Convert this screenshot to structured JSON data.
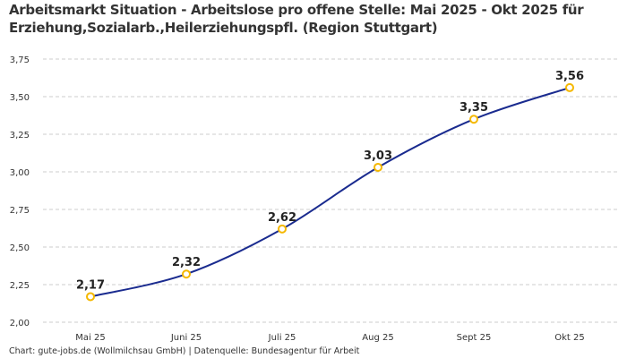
{
  "chart_data": {
    "type": "line",
    "title": "Arbeitsmarkt Situation - Arbeitslose pro offene Stelle: Mai 2025 - Okt 2025 für Erziehung,Sozialarb.,Heilerziehungspfl. (Region Stuttgart)",
    "categories": [
      "Mai 25",
      "Juni 25",
      "Juli 25",
      "Aug 25",
      "Sept 25",
      "Okt 25"
    ],
    "values": [
      2.17,
      2.32,
      2.62,
      3.03,
      3.35,
      3.56
    ],
    "data_labels": [
      "2,17",
      "2,32",
      "2,62",
      "3,03",
      "3,35",
      "3,56"
    ],
    "yticks": [
      "2,00",
      "2,25",
      "2,50",
      "2,75",
      "3,00",
      "3,25",
      "3,50",
      "3,75"
    ],
    "ylim": [
      2.0,
      3.75
    ],
    "grid": "horizontal dashed",
    "line_color": "#1a2b8f",
    "marker_color": "#f5b800",
    "xlabel": "",
    "ylabel": ""
  },
  "footer": {
    "credit": "Chart: gute-jobs.de (Wollmilchsau GmbH) | Datenquelle: Bundesagentur für Arbeit"
  }
}
